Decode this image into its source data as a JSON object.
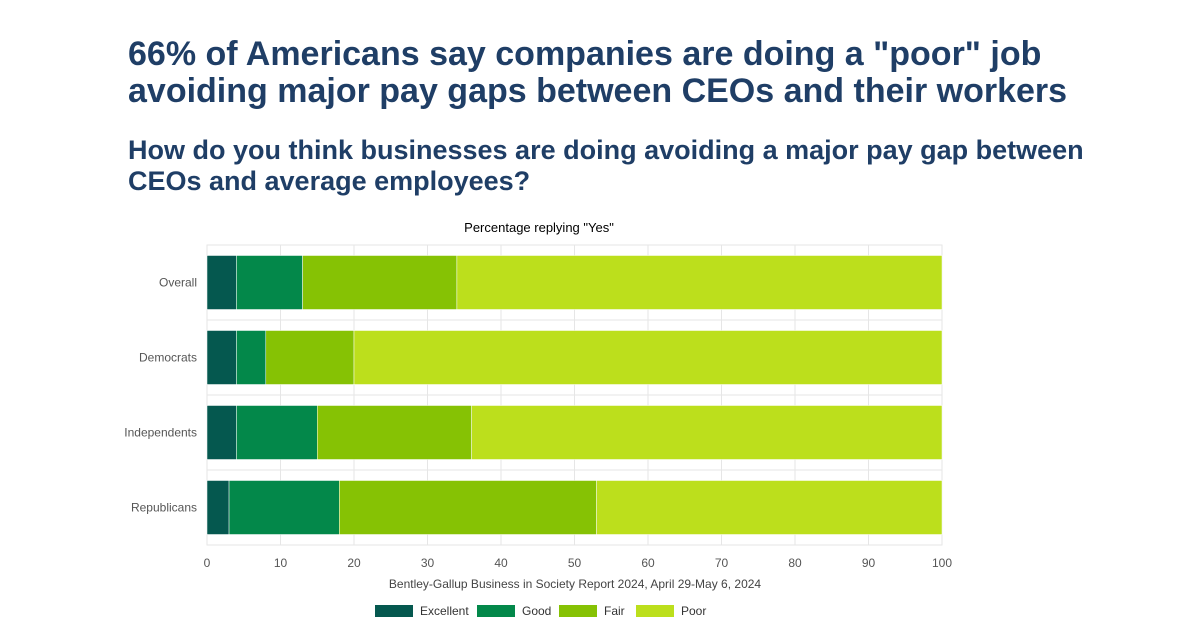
{
  "headline": "66% of Americans say companies are doing a \"poor\" job avoiding major pay gaps between CEOs and their workers",
  "subheadline": "How do you think businesses are doing avoiding a major pay gap between CEOs and average employees?",
  "chart_data": {
    "type": "bar",
    "orientation": "horizontal",
    "stacked": true,
    "title": "Percentage replying \"Yes\"",
    "xlabel": "Bentley-Gallup Business in Society Report 2024, April 29-May 6, 2024",
    "ylabel": "",
    "xlim": [
      0,
      100
    ],
    "x_ticks": [
      0,
      10,
      20,
      30,
      40,
      50,
      60,
      70,
      80,
      90,
      100
    ],
    "categories": [
      "Overall",
      "Democrats",
      "Independents",
      "Republicans"
    ],
    "series": [
      {
        "name": "Excellent",
        "color": "#05584f",
        "values": [
          4,
          4,
          4,
          3
        ]
      },
      {
        "name": "Good",
        "color": "#03884a",
        "values": [
          9,
          4,
          11,
          15
        ]
      },
      {
        "name": "Fair",
        "color": "#86c204",
        "values": [
          21,
          12,
          21,
          35
        ]
      },
      {
        "name": "Poor",
        "color": "#bcdf1c",
        "values": [
          66,
          80,
          64,
          47
        ]
      }
    ],
    "grid": true,
    "legend_position": "bottom"
  }
}
